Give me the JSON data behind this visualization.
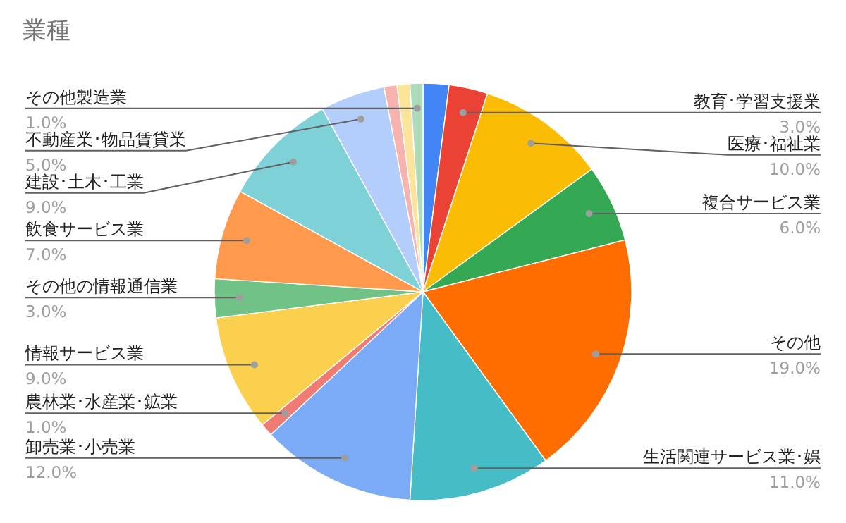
{
  "chart_data": {
    "type": "pie",
    "title": "業種",
    "categories": [
      null,
      "教育･学習支援業",
      "医療･福祉業",
      "複合サービス業",
      "その他",
      "生活関連サービス業･娯",
      "卸売業･小売業",
      "農林業･水産業･鉱業",
      "情報サービス業",
      "その他の情報通信業",
      "飲食サービス業",
      "建設･土木･工業",
      "不動産業･物品賃貸業",
      null,
      null,
      "その他製造業"
    ],
    "values": [
      2,
      3,
      10,
      6,
      19,
      11,
      12,
      1,
      9,
      3,
      7,
      9,
      5,
      1,
      1,
      1
    ],
    "value_labels": [
      null,
      "3.0%",
      "10.0%",
      "6.0%",
      "19.0%",
      "11.0%",
      "12.0%",
      "1.0%",
      "9.0%",
      "3.0%",
      "7.0%",
      "9.0%",
      "5.0%",
      null,
      null,
      "1.0%"
    ],
    "colors": [
      "#4285f4",
      "#ea4335",
      "#fbbc04",
      "#34a853",
      "#ff6d01",
      "#46bdc6",
      "#7baaf7",
      "#f07b72",
      "#fcd04f",
      "#71c287",
      "#ff994d",
      "#7ed1d7",
      "#b3cefb",
      "#f7b4ae",
      "#fde49b",
      "#aedcba"
    ]
  }
}
